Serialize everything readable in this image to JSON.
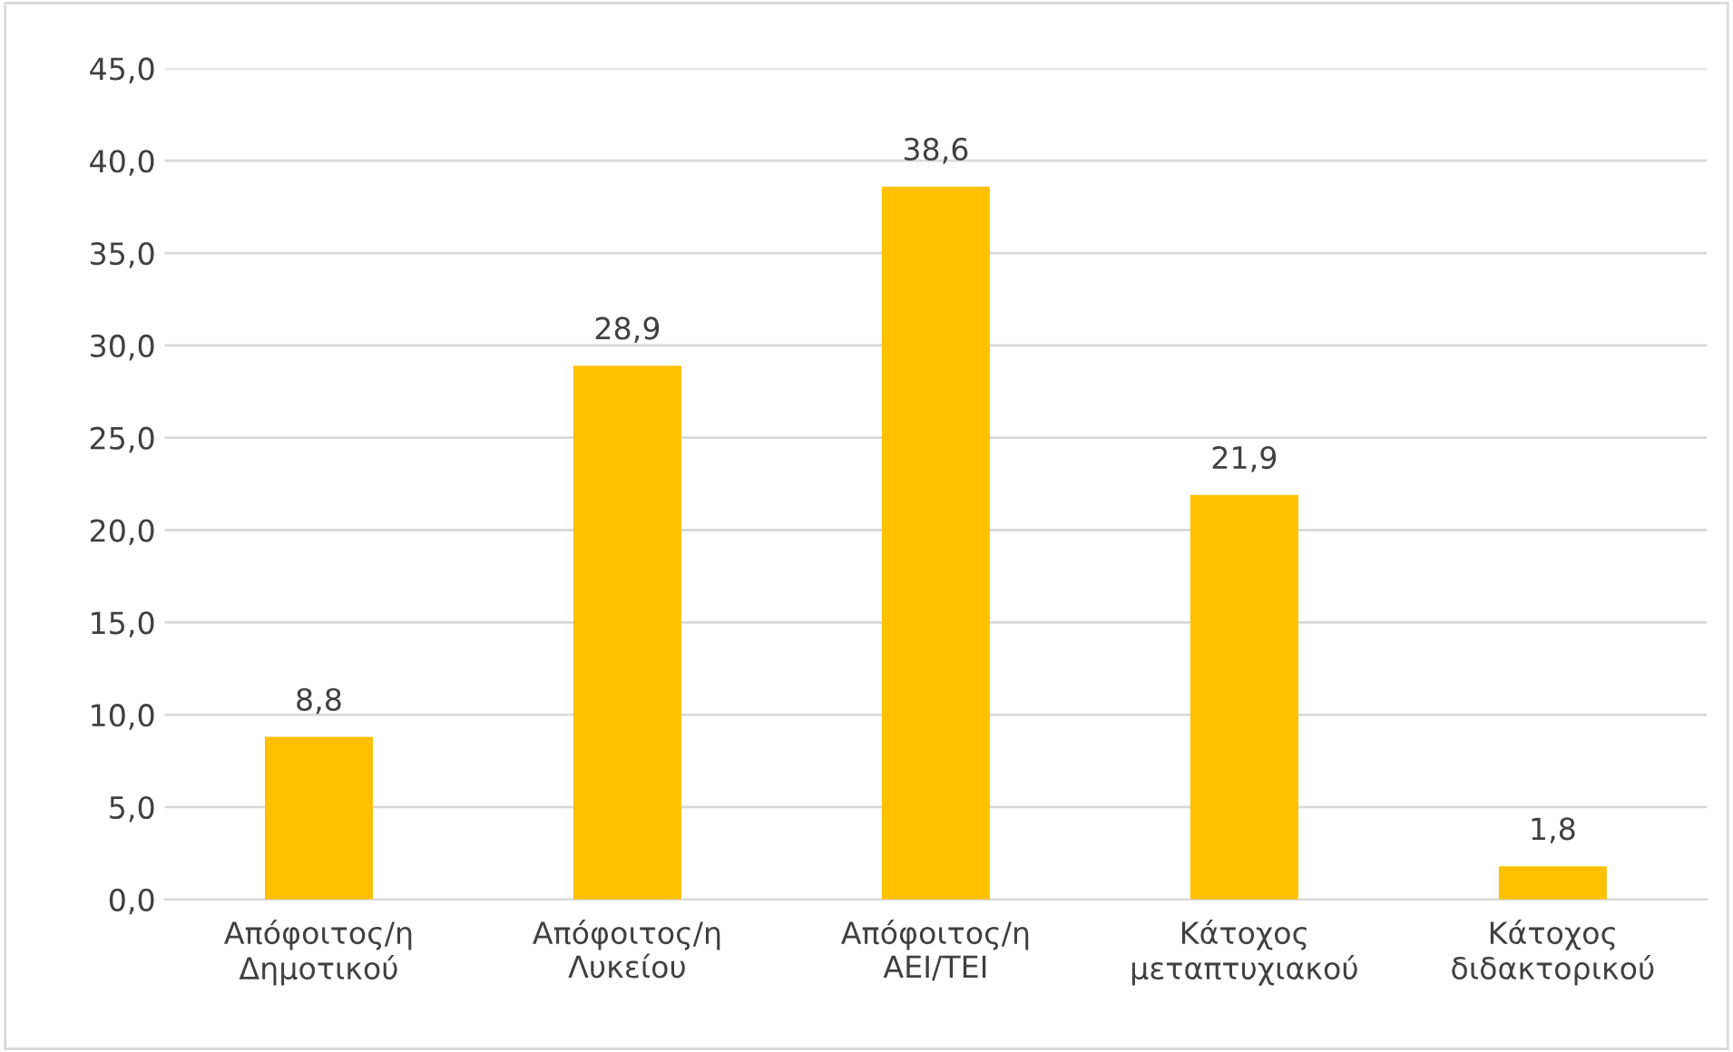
{
  "chart_data": {
    "type": "bar",
    "categories": [
      "Απόφοιτος/η\nΔημοτικού",
      "Απόφοιτος/η\nΛυκείου",
      "Απόφοιτος/η\nΑΕΙ/ΤΕΙ",
      "Κάτοχος\nμεταπτυχιακού",
      "Κάτοχος\nδιδακτορικού"
    ],
    "values": [
      8.8,
      28.9,
      38.6,
      21.9,
      1.8
    ],
    "value_labels": [
      "8,8",
      "28,9",
      "38,6",
      "21,9",
      "1,8"
    ],
    "color": "#ffc000",
    "ylim": [
      0,
      45
    ],
    "yticks": [
      {
        "value": 0,
        "label": "0,0"
      },
      {
        "value": 5,
        "label": "5,0"
      },
      {
        "value": 10,
        "label": "10,0"
      },
      {
        "value": 15,
        "label": "15,0"
      },
      {
        "value": 20,
        "label": "20,0"
      },
      {
        "value": 25,
        "label": "25,0"
      },
      {
        "value": 30,
        "label": "30,0"
      },
      {
        "value": 35,
        "label": "35,0"
      },
      {
        "value": 40,
        "label": "40,0"
      },
      {
        "value": 45,
        "label": "45,0"
      }
    ],
    "grid": "y"
  }
}
